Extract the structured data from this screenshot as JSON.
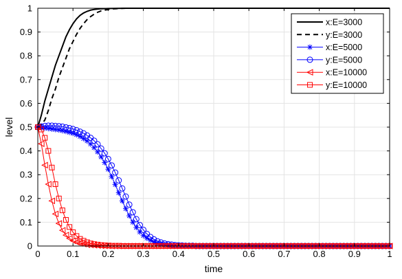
{
  "chart_data": {
    "type": "line",
    "title": "",
    "xlabel": "time",
    "ylabel": "level",
    "xlim": [
      0,
      1
    ],
    "ylim": [
      0,
      1
    ],
    "xticks": [
      "0",
      "0.1",
      "0.2",
      "0.3",
      "0.4",
      "0.5",
      "0.6",
      "0.7",
      "0.8",
      "0.9",
      "1"
    ],
    "yticks": [
      "0",
      "0.1",
      "0.2",
      "0.3",
      "0.4",
      "0.5",
      "0.6",
      "0.7",
      "0.8",
      "0.9",
      "1"
    ],
    "grid": true,
    "legend_position": "top-right",
    "series": [
      {
        "name": "x:E=3000",
        "color": "#000000",
        "line": "solid",
        "marker": "none",
        "x": [
          0,
          0.01,
          0.02,
          0.03,
          0.04,
          0.05,
          0.06,
          0.07,
          0.08,
          0.09,
          0.1,
          0.11,
          0.12,
          0.13,
          0.14,
          0.15,
          0.16,
          0.18,
          0.2,
          0.25,
          0.3,
          0.4,
          0.5,
          0.6,
          0.7,
          0.8,
          0.9,
          1.0
        ],
        "y": [
          0.5,
          0.55,
          0.61,
          0.66,
          0.71,
          0.76,
          0.8,
          0.84,
          0.88,
          0.91,
          0.935,
          0.955,
          0.97,
          0.98,
          0.987,
          0.992,
          0.995,
          0.998,
          0.999,
          1.0,
          1.0,
          1.0,
          1.0,
          1.0,
          1.0,
          1.0,
          1.0,
          1.0
        ]
      },
      {
        "name": "y:E=3000",
        "color": "#000000",
        "line": "dashed",
        "marker": "none",
        "x": [
          0,
          0.01,
          0.02,
          0.03,
          0.04,
          0.05,
          0.06,
          0.07,
          0.08,
          0.09,
          0.1,
          0.11,
          0.12,
          0.13,
          0.14,
          0.15,
          0.16,
          0.17,
          0.18,
          0.2,
          0.22,
          0.25,
          0.3,
          0.4,
          0.5,
          0.6,
          0.7,
          0.8,
          0.9,
          1.0
        ],
        "y": [
          0.5,
          0.51,
          0.53,
          0.57,
          0.62,
          0.66,
          0.71,
          0.75,
          0.79,
          0.83,
          0.86,
          0.89,
          0.915,
          0.935,
          0.952,
          0.965,
          0.975,
          0.983,
          0.989,
          0.995,
          0.998,
          1.0,
          1.0,
          1.0,
          1.0,
          1.0,
          1.0,
          1.0,
          1.0,
          1.0
        ]
      },
      {
        "name": "x:E=5000",
        "color": "#0000ff",
        "line": "solid",
        "marker": "star",
        "x": [
          0,
          0.01,
          0.02,
          0.03,
          0.04,
          0.05,
          0.06,
          0.07,
          0.08,
          0.09,
          0.1,
          0.11,
          0.12,
          0.13,
          0.14,
          0.15,
          0.16,
          0.17,
          0.18,
          0.19,
          0.2,
          0.21,
          0.22,
          0.23,
          0.24,
          0.25,
          0.26,
          0.27,
          0.28,
          0.29,
          0.3,
          0.31,
          0.32,
          0.33,
          0.34,
          0.35,
          0.36,
          0.37,
          0.38,
          0.39,
          0.4,
          0.41,
          0.42,
          0.43,
          0.44,
          0.45,
          0.46,
          0.47,
          0.48,
          0.49,
          0.5,
          0.51,
          0.52,
          0.53,
          0.54,
          0.55,
          0.56,
          0.57,
          0.58,
          0.59,
          0.6,
          0.61,
          0.62,
          0.63,
          0.64,
          0.65,
          0.66,
          0.67,
          0.68,
          0.69,
          0.7,
          0.71,
          0.72,
          0.73,
          0.74,
          0.75,
          0.76,
          0.77,
          0.78,
          0.79,
          0.8,
          0.81,
          0.82,
          0.83,
          0.84,
          0.85,
          0.86,
          0.87,
          0.88,
          0.89,
          0.9,
          0.91,
          0.92,
          0.93,
          0.94,
          0.95,
          0.96,
          0.97,
          0.98,
          0.99,
          1.0
        ],
        "y": [
          0.5,
          0.498,
          0.496,
          0.494,
          0.492,
          0.49,
          0.488,
          0.485,
          0.482,
          0.478,
          0.474,
          0.468,
          0.461,
          0.452,
          0.442,
          0.429,
          0.414,
          0.396,
          0.375,
          0.351,
          0.323,
          0.292,
          0.259,
          0.224,
          0.19,
          0.157,
          0.127,
          0.1,
          0.078,
          0.059,
          0.044,
          0.033,
          0.024,
          0.017,
          0.012,
          0.009,
          0.006,
          0.005,
          0.003,
          0.002,
          0.002,
          0.001,
          0.001,
          0.001,
          0.001,
          0.0,
          0.0,
          0.0,
          0.0,
          0.0,
          0.0,
          0.0,
          0.0,
          0.0,
          0.0,
          0.0,
          0.0,
          0.0,
          0.0,
          0.0,
          0.0,
          0.0,
          0.0,
          0.0,
          0.0,
          0.0,
          0.0,
          0.0,
          0.0,
          0.0,
          0.0,
          0.0,
          0.0,
          0.0,
          0.0,
          0.0,
          0.0,
          0.0,
          0.0,
          0.0,
          0.0,
          0.0,
          0.0,
          0.0,
          0.0,
          0.0,
          0.0,
          0.0,
          0.0,
          0.0,
          0.0,
          0.0,
          0.0,
          0.0,
          0.0,
          0.0,
          0.0,
          0.0,
          0.0,
          0.0,
          0.0
        ]
      },
      {
        "name": "y:E=5000",
        "color": "#0000ff",
        "line": "solid",
        "marker": "circle",
        "x": [
          0,
          0.01,
          0.02,
          0.03,
          0.04,
          0.05,
          0.06,
          0.07,
          0.08,
          0.09,
          0.1,
          0.11,
          0.12,
          0.13,
          0.14,
          0.15,
          0.16,
          0.17,
          0.18,
          0.19,
          0.2,
          0.21,
          0.22,
          0.23,
          0.24,
          0.25,
          0.26,
          0.27,
          0.28,
          0.29,
          0.3,
          0.31,
          0.32,
          0.33,
          0.34,
          0.35,
          0.36,
          0.37,
          0.38,
          0.39,
          0.4,
          0.41,
          0.42,
          0.43,
          0.44,
          0.45,
          0.46,
          0.47,
          0.48,
          0.49,
          0.5,
          0.51,
          0.52,
          0.53,
          0.54,
          0.55,
          0.56,
          0.57,
          0.58,
          0.59,
          0.6,
          0.61,
          0.62,
          0.63,
          0.64,
          0.65,
          0.66,
          0.67,
          0.68,
          0.69,
          0.7,
          0.71,
          0.72,
          0.73,
          0.74,
          0.75,
          0.76,
          0.77,
          0.78,
          0.79,
          0.8,
          0.81,
          0.82,
          0.83,
          0.84,
          0.85,
          0.86,
          0.87,
          0.88,
          0.89,
          0.9,
          0.91,
          0.92,
          0.93,
          0.94,
          0.95,
          0.96,
          0.97,
          0.98,
          0.99,
          1.0
        ],
        "y": [
          0.5,
          0.503,
          0.505,
          0.506,
          0.506,
          0.505,
          0.504,
          0.502,
          0.499,
          0.496,
          0.492,
          0.487,
          0.481,
          0.474,
          0.465,
          0.455,
          0.443,
          0.428,
          0.41,
          0.39,
          0.366,
          0.339,
          0.309,
          0.276,
          0.242,
          0.208,
          0.174,
          0.142,
          0.113,
          0.088,
          0.068,
          0.051,
          0.038,
          0.028,
          0.02,
          0.015,
          0.011,
          0.008,
          0.006,
          0.004,
          0.003,
          0.002,
          0.001,
          0.001,
          0.001,
          0.0,
          0.0,
          0.0,
          0.0,
          0.0,
          0.0,
          0.0,
          0.0,
          0.0,
          0.0,
          0.0,
          0.0,
          0.0,
          0.0,
          0.0,
          0.0,
          0.0,
          0.0,
          0.0,
          0.0,
          0.0,
          0.0,
          0.0,
          0.0,
          0.0,
          0.0,
          0.0,
          0.0,
          0.0,
          0.0,
          0.0,
          0.0,
          0.0,
          0.0,
          0.0,
          0.0,
          0.0,
          0.0,
          0.0,
          0.0,
          0.0,
          0.0,
          0.0,
          0.0,
          0.0,
          0.0,
          0.0,
          0.0,
          0.0,
          0.0,
          0.0,
          0.0,
          0.0,
          0.0,
          0.0,
          0.0
        ]
      },
      {
        "name": "x:E=10000",
        "color": "#ff0000",
        "line": "solid",
        "marker": "triangle-left",
        "x": [
          0,
          0.01,
          0.02,
          0.03,
          0.04,
          0.05,
          0.06,
          0.07,
          0.08,
          0.09,
          0.1,
          0.11,
          0.12,
          0.13,
          0.14,
          0.15,
          0.16,
          0.17,
          0.18,
          0.19,
          0.2,
          0.21,
          0.22,
          0.23,
          0.24,
          0.25,
          0.26,
          0.27,
          0.28,
          0.29,
          0.3,
          0.31,
          0.32,
          0.33,
          0.34,
          0.35,
          0.36,
          0.37,
          0.38,
          0.39,
          0.4,
          0.41,
          0.42,
          0.43,
          0.44,
          0.45,
          0.46,
          0.47,
          0.48,
          0.49,
          0.5,
          0.51,
          0.52,
          0.53,
          0.54,
          0.55,
          0.56,
          0.57,
          0.58,
          0.59,
          0.6,
          0.61,
          0.62,
          0.63,
          0.64,
          0.65,
          0.66,
          0.67,
          0.68,
          0.69,
          0.7,
          0.71,
          0.72,
          0.73,
          0.74,
          0.75,
          0.76,
          0.77,
          0.78,
          0.79,
          0.8,
          0.81,
          0.82,
          0.83,
          0.84,
          0.85,
          0.86,
          0.87,
          0.88,
          0.89,
          0.9,
          0.91,
          0.92,
          0.93,
          0.94,
          0.95,
          0.96,
          0.97,
          0.98,
          0.99,
          1.0
        ],
        "y": [
          0.5,
          0.43,
          0.34,
          0.26,
          0.19,
          0.135,
          0.095,
          0.066,
          0.046,
          0.032,
          0.022,
          0.016,
          0.011,
          0.008,
          0.005,
          0.004,
          0.003,
          0.002,
          0.001,
          0.001,
          0.001,
          0.0,
          0.0,
          0.0,
          0.0,
          0.0,
          0.0,
          0.0,
          0.0,
          0.0,
          0.0,
          0.0,
          0.0,
          0.0,
          0.0,
          0.0,
          0.0,
          0.0,
          0.0,
          0.0,
          0.0,
          0.0,
          0.0,
          0.0,
          0.0,
          0.0,
          0.0,
          0.0,
          0.0,
          0.0,
          0.0,
          0.0,
          0.0,
          0.0,
          0.0,
          0.0,
          0.0,
          0.0,
          0.0,
          0.0,
          0.0,
          0.0,
          0.0,
          0.0,
          0.0,
          0.0,
          0.0,
          0.0,
          0.0,
          0.0,
          0.0,
          0.0,
          0.0,
          0.0,
          0.0,
          0.0,
          0.0,
          0.0,
          0.0,
          0.0,
          0.0,
          0.0,
          0.0,
          0.0,
          0.0,
          0.0,
          0.0,
          0.0,
          0.0,
          0.0,
          0.0,
          0.0,
          0.0,
          0.0,
          0.0,
          0.0,
          0.0,
          0.0,
          0.0,
          0.0,
          0.0
        ]
      },
      {
        "name": "y:E=10000",
        "color": "#ff0000",
        "line": "solid",
        "marker": "square",
        "x": [
          0,
          0.01,
          0.02,
          0.03,
          0.04,
          0.05,
          0.06,
          0.07,
          0.08,
          0.09,
          0.1,
          0.11,
          0.12,
          0.13,
          0.14,
          0.15,
          0.16,
          0.17,
          0.18,
          0.19,
          0.2,
          0.21,
          0.22,
          0.23,
          0.24,
          0.25,
          0.26,
          0.27,
          0.28,
          0.29,
          0.3,
          0.31,
          0.32,
          0.33,
          0.34,
          0.35,
          0.36,
          0.37,
          0.38,
          0.39,
          0.4,
          0.41,
          0.42,
          0.43,
          0.44,
          0.45,
          0.46,
          0.47,
          0.48,
          0.49,
          0.5,
          0.51,
          0.52,
          0.53,
          0.54,
          0.55,
          0.56,
          0.57,
          0.58,
          0.59,
          0.6,
          0.61,
          0.62,
          0.63,
          0.64,
          0.65,
          0.66,
          0.67,
          0.68,
          0.69,
          0.7,
          0.71,
          0.72,
          0.73,
          0.74,
          0.75,
          0.76,
          0.77,
          0.78,
          0.79,
          0.8,
          0.81,
          0.82,
          0.83,
          0.84,
          0.85,
          0.86,
          0.87,
          0.88,
          0.89,
          0.9,
          0.91,
          0.92,
          0.93,
          0.94,
          0.95,
          0.96,
          0.97,
          0.98,
          0.99,
          1.0
        ],
        "y": [
          0.5,
          0.49,
          0.455,
          0.4,
          0.33,
          0.26,
          0.2,
          0.15,
          0.11,
          0.08,
          0.058,
          0.042,
          0.03,
          0.022,
          0.016,
          0.011,
          0.008,
          0.006,
          0.004,
          0.003,
          0.002,
          0.001,
          0.001,
          0.001,
          0.0,
          0.0,
          0.0,
          0.0,
          0.0,
          0.0,
          0.0,
          0.0,
          0.0,
          0.0,
          0.0,
          0.0,
          0.0,
          0.0,
          0.0,
          0.0,
          0.0,
          0.0,
          0.0,
          0.0,
          0.0,
          0.0,
          0.0,
          0.0,
          0.0,
          0.0,
          0.0,
          0.0,
          0.0,
          0.0,
          0.0,
          0.0,
          0.0,
          0.0,
          0.0,
          0.0,
          0.0,
          0.0,
          0.0,
          0.0,
          0.0,
          0.0,
          0.0,
          0.0,
          0.0,
          0.0,
          0.0,
          0.0,
          0.0,
          0.0,
          0.0,
          0.0,
          0.0,
          0.0,
          0.0,
          0.0,
          0.0,
          0.0,
          0.0,
          0.0,
          0.0,
          0.0,
          0.0,
          0.0,
          0.0,
          0.0,
          0.0,
          0.0,
          0.0,
          0.0,
          0.0,
          0.0,
          0.0,
          0.0,
          0.0,
          0.0,
          0.0
        ]
      }
    ]
  }
}
